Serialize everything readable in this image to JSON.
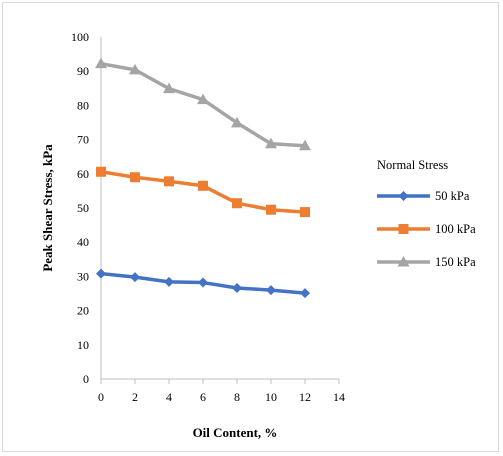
{
  "chart_data": {
    "type": "line",
    "title": "",
    "xlabel": "Oil Content, %",
    "ylabel": "Peak Shear Stress, kPa",
    "xlim": [
      0,
      14
    ],
    "ylim": [
      0,
      100
    ],
    "x_ticks": [
      0,
      2,
      4,
      6,
      8,
      10,
      12,
      14
    ],
    "y_ticks": [
      0,
      10,
      20,
      30,
      40,
      50,
      60,
      70,
      80,
      90,
      100
    ],
    "grid": false,
    "legend": {
      "title": "Normal Stress",
      "placement": "right"
    },
    "x": [
      0,
      2,
      4,
      6,
      8,
      10,
      12
    ],
    "series": [
      {
        "name": "50 kPa",
        "color": "#4472c4",
        "marker": "diamond",
        "values": [
          30.8,
          29.8,
          28.4,
          28.2,
          26.6,
          26.0,
          25.1
        ]
      },
      {
        "name": "100 kPa",
        "color": "#ed7d31",
        "marker": "square",
        "values": [
          60.6,
          59.0,
          57.8,
          56.5,
          51.4,
          49.5,
          48.8
        ]
      },
      {
        "name": "150 kPa",
        "color": "#a5a5a5",
        "marker": "triangle",
        "values": [
          92.2,
          90.4,
          84.9,
          81.7,
          74.9,
          68.8,
          68.2
        ]
      }
    ]
  }
}
